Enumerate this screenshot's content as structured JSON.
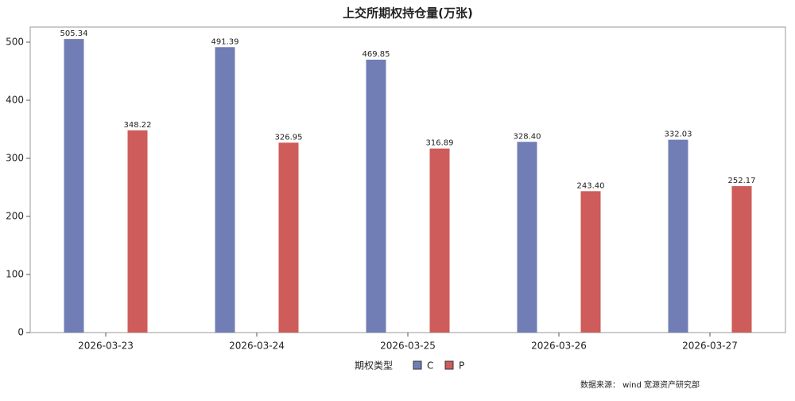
{
  "chart_data": {
    "type": "bar",
    "title": "上交所期权持仓量(万张)",
    "categories": [
      "2026-03-23",
      "2026-03-24",
      "2026-03-25",
      "2026-03-26",
      "2026-03-27"
    ],
    "series": [
      {
        "name": "C",
        "color": "#717eb5",
        "values": [
          505.34,
          491.39,
          469.85,
          328.4,
          332.03
        ],
        "value_labels": [
          "505.34",
          "491.39",
          "469.85",
          "328.40",
          "332.03"
        ]
      },
      {
        "name": "P",
        "color": "#cd5c5a",
        "values": [
          348.22,
          326.95,
          316.89,
          243.4,
          252.17
        ],
        "value_labels": [
          "348.22",
          "326.95",
          "316.89",
          "243.40",
          "252.17"
        ]
      }
    ],
    "ylim": [
      0,
      526
    ],
    "yticks": [
      0,
      100,
      200,
      300,
      400,
      500
    ],
    "legend_title": "期权类型",
    "legend_position": "bottom",
    "source": "数据来源：  wind  宽源资产研究部"
  }
}
